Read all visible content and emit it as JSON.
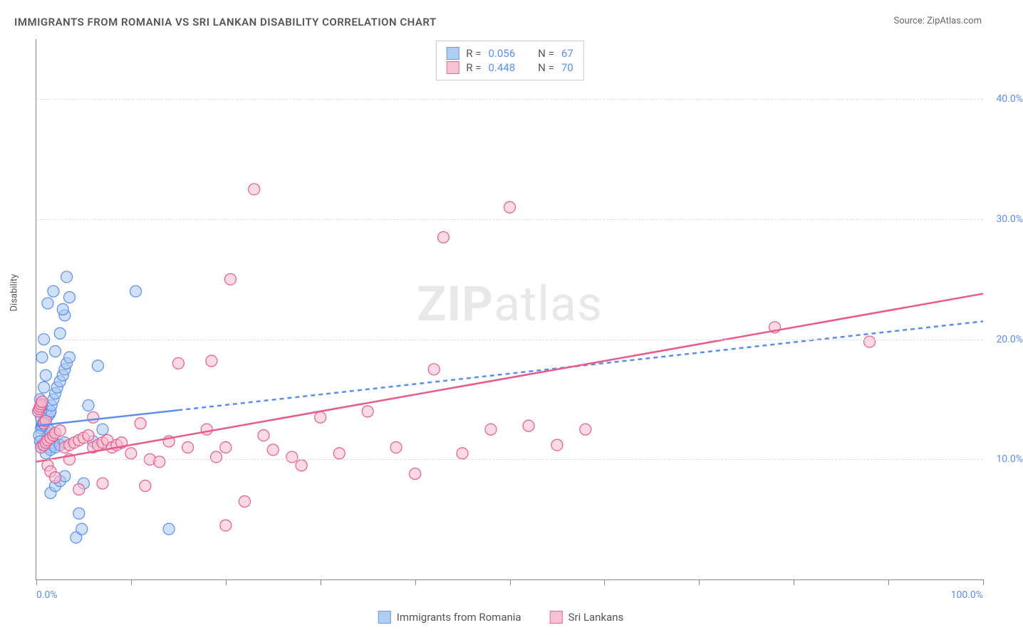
{
  "title": "IMMIGRANTS FROM ROMANIA VS SRI LANKAN DISABILITY CORRELATION CHART",
  "source": "Source: ZipAtlas.com",
  "watermark_bold": "ZIP",
  "watermark_rest": "atlas",
  "y_axis_label": "Disability",
  "chart": {
    "type": "scatter",
    "xlim": [
      0,
      100
    ],
    "ylim": [
      0,
      45
    ],
    "x_ticks": [
      0,
      10,
      20,
      30,
      40,
      50,
      60,
      70,
      80,
      90,
      100
    ],
    "x_tick_labels": {
      "0": "0.0%",
      "100": "100.0%"
    },
    "y_gridlines": [
      10,
      20,
      30,
      40
    ],
    "y_tick_labels": {
      "10": "10.0%",
      "20": "20.0%",
      "30": "30.0%",
      "40": "40.0%"
    },
    "background_color": "#ffffff",
    "grid_color": "#dddddd",
    "axis_color": "#888888",
    "marker_radius": 8,
    "marker_stroke_width": 1.2,
    "series": [
      {
        "name": "Immigrants from Romania",
        "color_fill": "#a9c8f0",
        "color_stroke": "#5b8def",
        "fill_opacity": 0.55,
        "trend": {
          "solid_from": [
            0,
            12.8
          ],
          "solid_to": [
            15,
            14.1
          ],
          "dash_from": [
            15,
            14.1
          ],
          "dash_to": [
            100,
            21.5
          ],
          "stroke_width": 2.5
        },
        "stats": {
          "R": "0.056",
          "N": "67"
        },
        "points": [
          [
            0.5,
            11.0
          ],
          [
            0.6,
            11.2
          ],
          [
            0.7,
            11.3
          ],
          [
            0.8,
            11.4
          ],
          [
            0.9,
            11.5
          ],
          [
            1.0,
            11.6
          ],
          [
            1.1,
            11.8
          ],
          [
            1.2,
            12.0
          ],
          [
            1.3,
            12.2
          ],
          [
            1.4,
            12.4
          ],
          [
            1.5,
            11.0
          ],
          [
            1.6,
            11.2
          ],
          [
            1.7,
            11.4
          ],
          [
            0.5,
            12.6
          ],
          [
            0.6,
            12.8
          ],
          [
            0.7,
            13.0
          ],
          [
            0.8,
            13.2
          ],
          [
            1.0,
            13.4
          ],
          [
            1.2,
            13.6
          ],
          [
            1.4,
            13.8
          ],
          [
            1.5,
            14.0
          ],
          [
            1.6,
            14.5
          ],
          [
            1.8,
            15.0
          ],
          [
            2.0,
            15.5
          ],
          [
            2.2,
            16.0
          ],
          [
            2.5,
            16.5
          ],
          [
            2.8,
            17.0
          ],
          [
            3.0,
            17.5
          ],
          [
            3.2,
            18.0
          ],
          [
            3.5,
            18.5
          ],
          [
            1.5,
            7.2
          ],
          [
            2.0,
            7.8
          ],
          [
            2.5,
            8.2
          ],
          [
            3.0,
            8.6
          ],
          [
            4.2,
            3.5
          ],
          [
            4.5,
            5.5
          ],
          [
            4.8,
            4.2
          ],
          [
            5.0,
            8.0
          ],
          [
            5.5,
            14.5
          ],
          [
            6.0,
            11.5
          ],
          [
            2.0,
            19.0
          ],
          [
            2.5,
            20.5
          ],
          [
            3.0,
            22.0
          ],
          [
            3.5,
            23.5
          ],
          [
            2.8,
            22.5
          ],
          [
            3.2,
            25.2
          ],
          [
            1.8,
            24.0
          ],
          [
            1.2,
            23.0
          ],
          [
            0.8,
            20.0
          ],
          [
            0.6,
            18.5
          ],
          [
            0.4,
            15.0
          ],
          [
            0.5,
            14.0
          ],
          [
            1.0,
            10.5
          ],
          [
            1.5,
            10.8
          ],
          [
            2.0,
            11.0
          ],
          [
            2.5,
            11.2
          ],
          [
            3.0,
            11.4
          ],
          [
            10.5,
            24.0
          ],
          [
            14.0,
            4.2
          ],
          [
            6.5,
            17.8
          ],
          [
            7.0,
            12.5
          ],
          [
            0.3,
            12.0
          ],
          [
            0.4,
            11.5
          ],
          [
            0.5,
            13.5
          ],
          [
            0.6,
            14.5
          ],
          [
            0.8,
            16.0
          ],
          [
            1.0,
            17.0
          ]
        ]
      },
      {
        "name": "Sri Lankans",
        "color_fill": "#f7bcce",
        "color_stroke": "#e85a8a",
        "fill_opacity": 0.55,
        "trend": {
          "solid_from": [
            0,
            9.8
          ],
          "solid_to": [
            100,
            23.8
          ],
          "dash_from": null,
          "dash_to": null,
          "stroke_width": 2.5
        },
        "stats": {
          "R": "0.448",
          "N": "70"
        },
        "points": [
          [
            0.5,
            11.0
          ],
          [
            0.8,
            11.2
          ],
          [
            1.0,
            11.4
          ],
          [
            1.2,
            11.6
          ],
          [
            1.5,
            11.8
          ],
          [
            1.8,
            12.0
          ],
          [
            2.0,
            12.2
          ],
          [
            2.5,
            12.4
          ],
          [
            3.0,
            11.0
          ],
          [
            3.5,
            11.2
          ],
          [
            4.0,
            11.4
          ],
          [
            4.5,
            11.6
          ],
          [
            5.0,
            11.8
          ],
          [
            5.5,
            12.0
          ],
          [
            6.0,
            11.0
          ],
          [
            6.5,
            11.2
          ],
          [
            7.0,
            11.4
          ],
          [
            7.5,
            11.6
          ],
          [
            8.0,
            11.0
          ],
          [
            8.5,
            11.2
          ],
          [
            9.0,
            11.4
          ],
          [
            10.0,
            10.5
          ],
          [
            11.0,
            13.0
          ],
          [
            12.0,
            10.0
          ],
          [
            13.0,
            9.8
          ],
          [
            14.0,
            11.5
          ],
          [
            15.0,
            18.0
          ],
          [
            16.0,
            11.0
          ],
          [
            18.0,
            12.5
          ],
          [
            19.0,
            10.2
          ],
          [
            20.0,
            11.0
          ],
          [
            22.0,
            6.5
          ],
          [
            23.0,
            32.5
          ],
          [
            24.0,
            12.0
          ],
          [
            20.5,
            25.0
          ],
          [
            25.0,
            10.8
          ],
          [
            28.0,
            9.5
          ],
          [
            30.0,
            13.5
          ],
          [
            32.0,
            10.5
          ],
          [
            35.0,
            14.0
          ],
          [
            38.0,
            11.0
          ],
          [
            40.0,
            8.8
          ],
          [
            42.0,
            17.5
          ],
          [
            43.0,
            28.5
          ],
          [
            45.0,
            10.5
          ],
          [
            48.0,
            12.5
          ],
          [
            50.0,
            31.0
          ],
          [
            52.0,
            12.8
          ],
          [
            55.0,
            11.2
          ],
          [
            58.0,
            12.5
          ],
          [
            0.2,
            14.0
          ],
          [
            0.3,
            14.2
          ],
          [
            0.4,
            14.4
          ],
          [
            0.5,
            14.6
          ],
          [
            0.6,
            14.8
          ],
          [
            0.8,
            13.0
          ],
          [
            1.0,
            13.2
          ],
          [
            1.2,
            9.5
          ],
          [
            1.5,
            9.0
          ],
          [
            2.0,
            8.5
          ],
          [
            3.5,
            10.0
          ],
          [
            7.0,
            8.0
          ],
          [
            11.5,
            7.8
          ],
          [
            18.5,
            18.2
          ],
          [
            20.0,
            4.5
          ],
          [
            27.0,
            10.2
          ],
          [
            78.0,
            21.0
          ],
          [
            88.0,
            19.8
          ],
          [
            4.5,
            7.5
          ],
          [
            6.0,
            13.5
          ]
        ]
      }
    ]
  },
  "legend_stats_labels": {
    "R": "R =",
    "N": "N ="
  },
  "bottom_legend": {
    "series1": "Immigrants from Romania",
    "series2": "Sri Lankans"
  }
}
